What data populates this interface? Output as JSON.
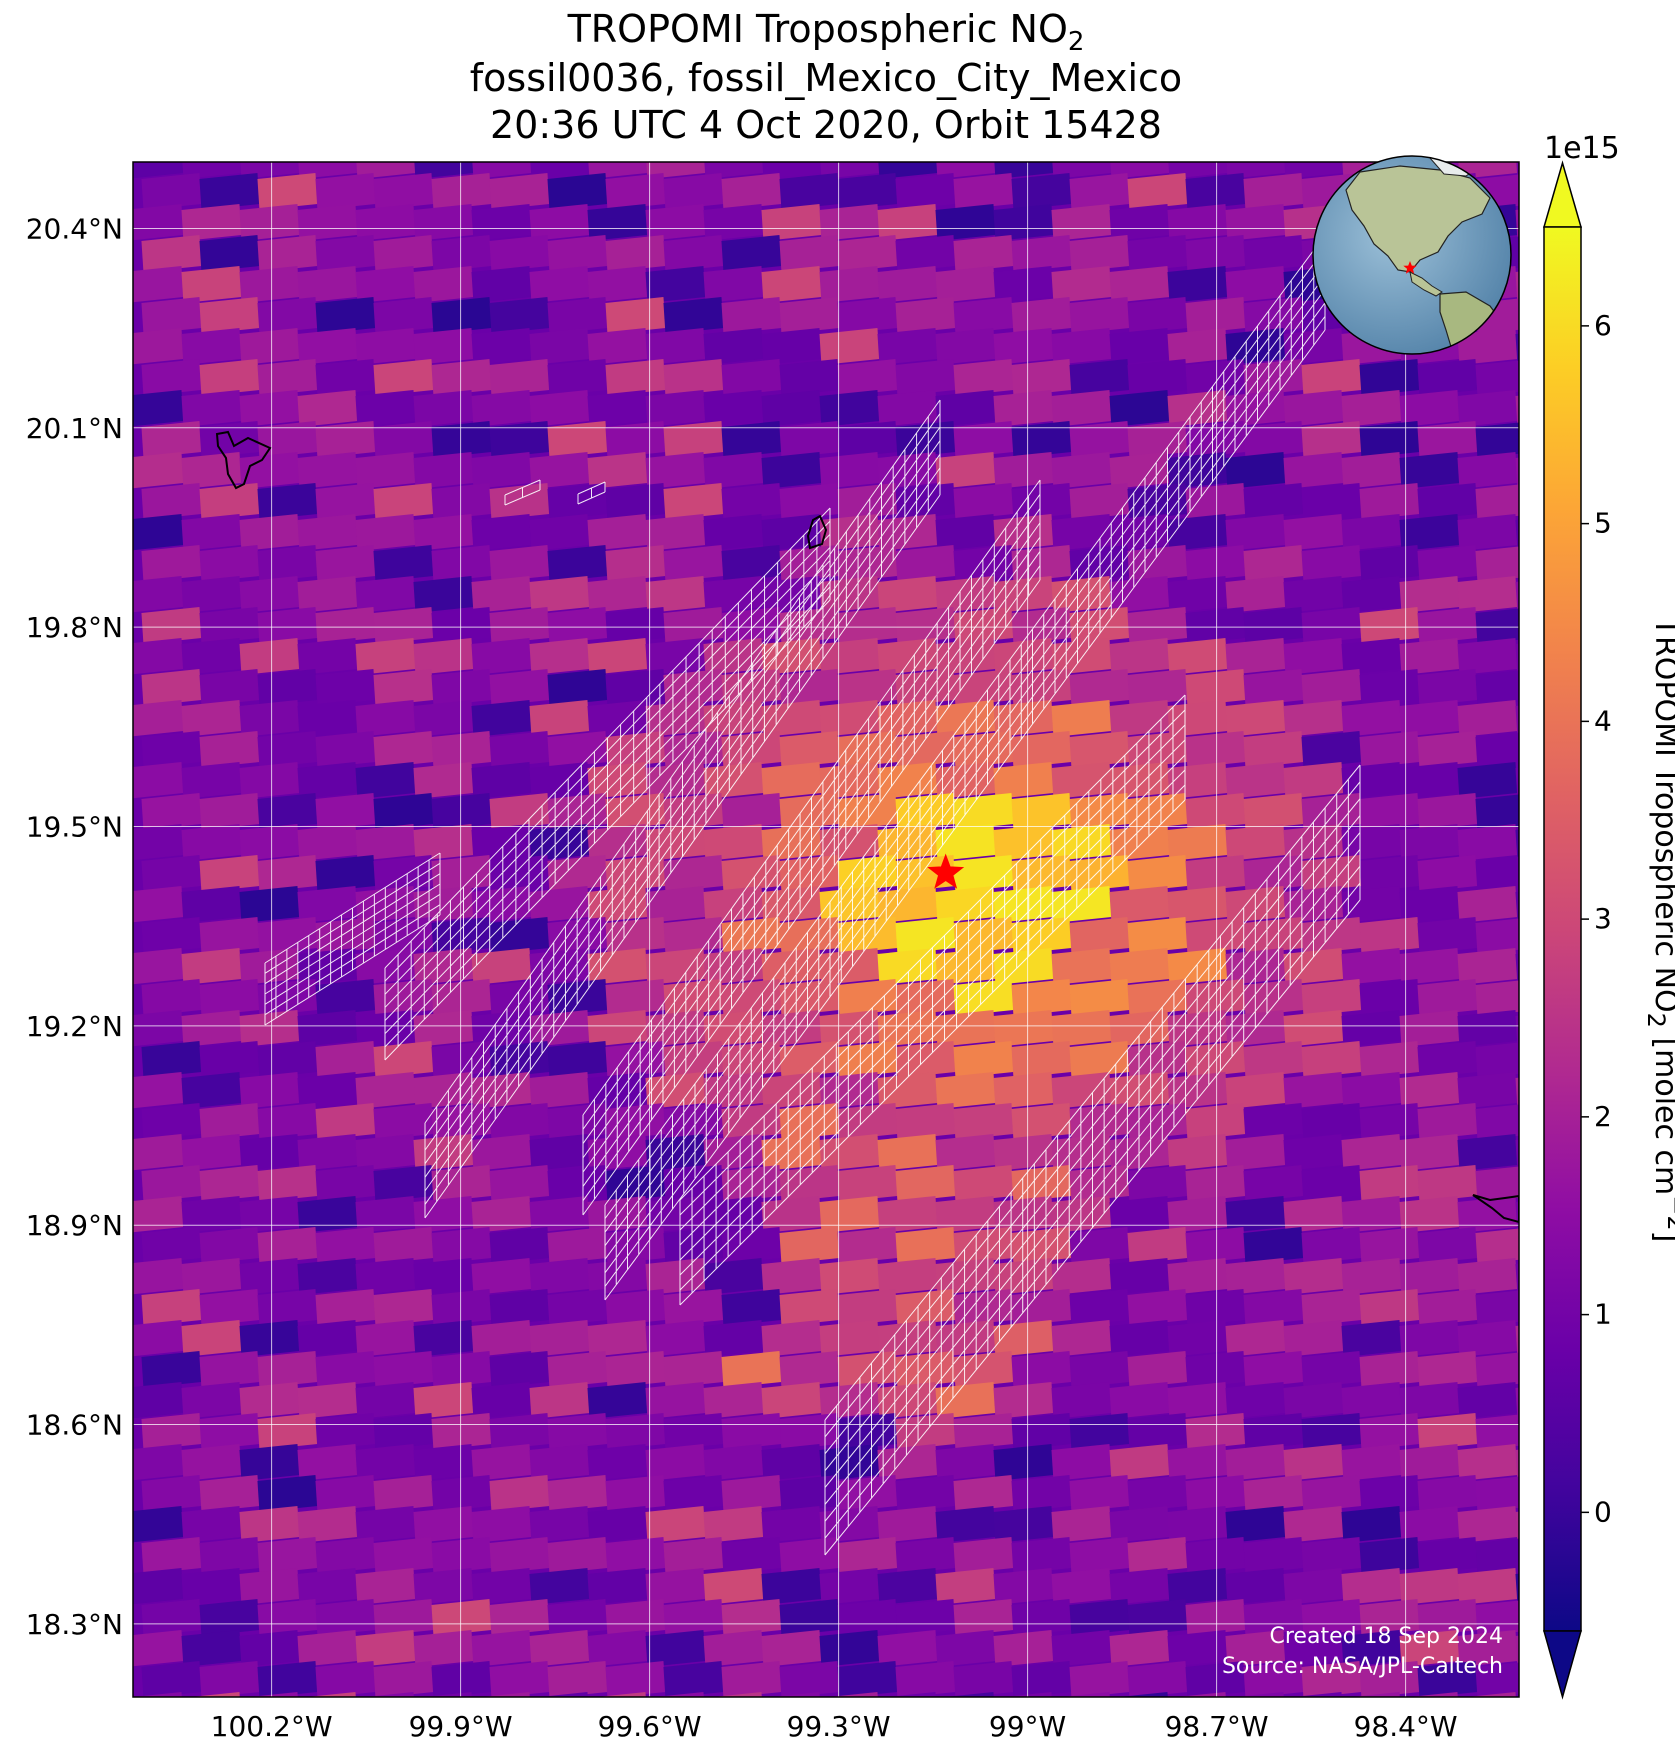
{
  "title": {
    "line1_main": "TROPOMI Tropospheric NO",
    "line1_sub": "2",
    "line2": "fossil0036, fossil_Mexico_City_Mexico",
    "line3": "20:36 UTC 4 Oct 2020, Orbit 15428"
  },
  "map": {
    "lon_range": [
      -100.42,
      -98.22
    ],
    "lat_range": [
      18.19,
      20.5
    ],
    "lon_ticks": [
      {
        "value": -100.2,
        "label": "100.2°W"
      },
      {
        "value": -99.9,
        "label": "99.9°W"
      },
      {
        "value": -99.6,
        "label": "99.6°W"
      },
      {
        "value": -99.3,
        "label": "99.3°W"
      },
      {
        "value": -99.0,
        "label": "99°W"
      },
      {
        "value": -98.7,
        "label": "98.7°W"
      },
      {
        "value": -98.4,
        "label": "98.4°W"
      }
    ],
    "lat_ticks": [
      {
        "value": 20.4,
        "label": "20.4°N"
      },
      {
        "value": 20.1,
        "label": "20.1°N"
      },
      {
        "value": 19.8,
        "label": "19.8°N"
      },
      {
        "value": 19.5,
        "label": "19.5°N"
      },
      {
        "value": 19.2,
        "label": "19.2°N"
      },
      {
        "value": 18.9,
        "label": "18.9°N"
      },
      {
        "value": 18.6,
        "label": "18.6°N"
      },
      {
        "value": 18.3,
        "label": "18.3°N"
      }
    ],
    "source_marker": {
      "lon": -99.13,
      "lat": 19.43,
      "symbol": "star",
      "color": "#ff0000"
    },
    "colormap": "plasma",
    "footer_line1": "Created 18 Sep 2024",
    "footer_line2": "Source: NASA/JPL-Caltech"
  },
  "colorbar": {
    "exponent": "1e15",
    "label_main": "TROPOMI Tropospheric NO",
    "label_sub": "2",
    "label_unit_main": " [molec cm",
    "label_unit_sup": "−2",
    "label_unit_end": "]",
    "range": [
      -0.6,
      6.5
    ],
    "ticks": [
      {
        "value": 0,
        "label": "0"
      },
      {
        "value": 1,
        "label": "1"
      },
      {
        "value": 2,
        "label": "2"
      },
      {
        "value": 3,
        "label": "3"
      },
      {
        "value": 4,
        "label": "4"
      },
      {
        "value": 5,
        "label": "5"
      },
      {
        "value": 6,
        "label": "6"
      }
    ]
  },
  "inset_globe": {
    "highlight": "red-star",
    "region": "North and Central America"
  }
}
